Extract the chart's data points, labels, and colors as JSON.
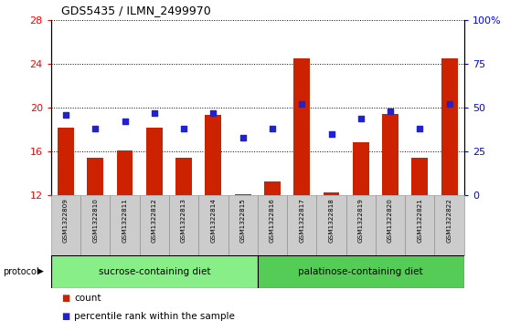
{
  "title": "GDS5435 / ILMN_2499970",
  "samples": [
    "GSM1322809",
    "GSM1322810",
    "GSM1322811",
    "GSM1322812",
    "GSM1322813",
    "GSM1322814",
    "GSM1322815",
    "GSM1322816",
    "GSM1322817",
    "GSM1322818",
    "GSM1322819",
    "GSM1322820",
    "GSM1322821",
    "GSM1322822"
  ],
  "count_values": [
    18.2,
    15.4,
    16.1,
    18.2,
    15.4,
    19.3,
    12.1,
    13.3,
    24.5,
    12.3,
    16.8,
    19.4,
    15.4,
    24.5
  ],
  "percentile_values": [
    46,
    38,
    42,
    47,
    38,
    47,
    33,
    38,
    52,
    35,
    44,
    48,
    38,
    52
  ],
  "ylim_left": [
    12,
    28
  ],
  "ylim_right": [
    0,
    100
  ],
  "yticks_left": [
    12,
    16,
    20,
    24,
    28
  ],
  "yticks_right": [
    0,
    25,
    50,
    75,
    100
  ],
  "ytick_right_labels": [
    "0",
    "25",
    "50",
    "75",
    "100%"
  ],
  "bar_color": "#cc2200",
  "dot_color": "#2222cc",
  "group1_label": "sucrose-containing diet",
  "group2_label": "palatinose-containing diet",
  "group1_count": 7,
  "group2_count": 7,
  "protocol_label": "protocol",
  "group_bg": "#88ee88",
  "tick_bg": "#cccccc",
  "legend_count_label": "count",
  "legend_percentile_label": "percentile rank within the sample",
  "bar_width": 0.55
}
